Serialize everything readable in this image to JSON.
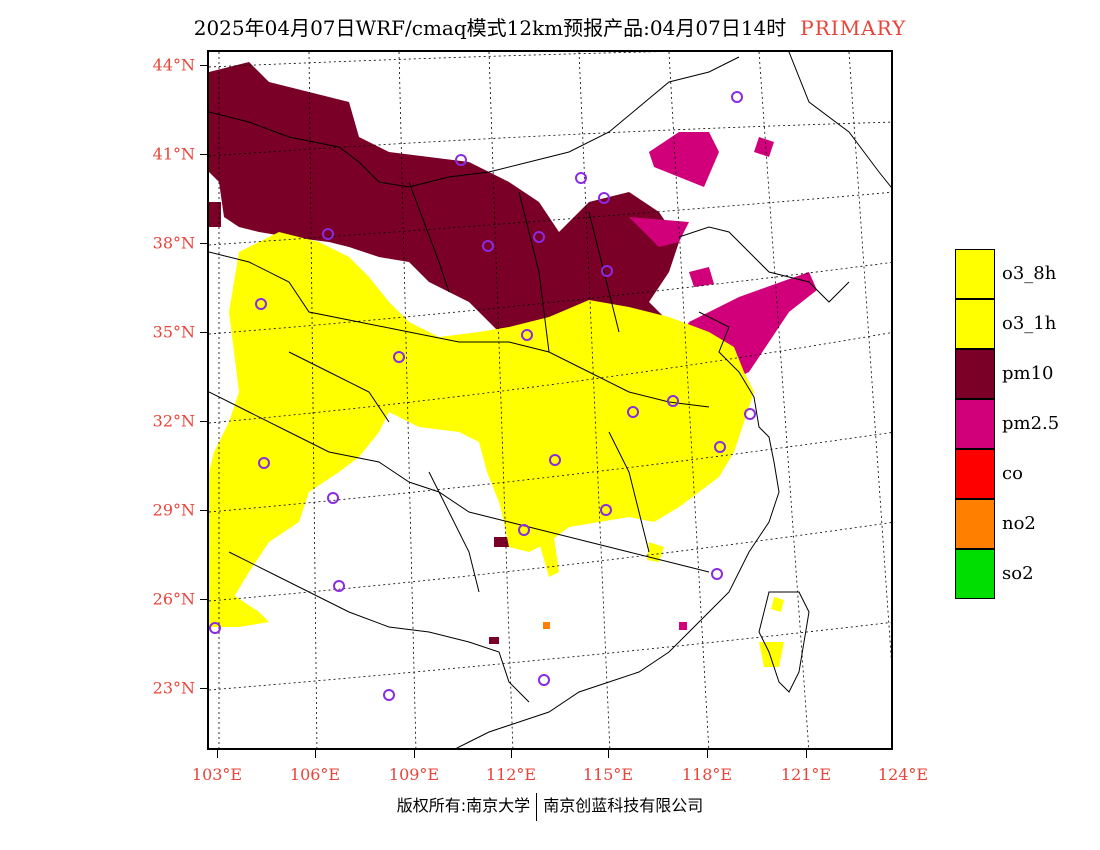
{
  "title": {
    "text": "2025年04月07日WRF/cmaq模式12km预报产品:04月07日14时",
    "tag": "PRIMARY"
  },
  "axes": {
    "lat_labels": [
      "44°N",
      "41°N",
      "38°N",
      "35°N",
      "32°N",
      "29°N",
      "26°N",
      "23°N"
    ],
    "lon_labels": [
      "103°E",
      "106°E",
      "109°E",
      "112°E",
      "115°E",
      "118°E",
      "121°E",
      "124°E"
    ]
  },
  "legend": {
    "items": [
      {
        "label": "o3_8h",
        "color": "#ffff00"
      },
      {
        "label": "o3_1h",
        "color": "#ffff00"
      },
      {
        "label": "pm10",
        "color": "#7a0028"
      },
      {
        "label": "pm2.5",
        "color": "#d1007a"
      },
      {
        "label": "co",
        "color": "#ff0000"
      },
      {
        "label": "no2",
        "color": "#ff8000"
      },
      {
        "label": "so2",
        "color": "#00dd00"
      }
    ]
  },
  "credit": {
    "left": "版权所有:南京大学",
    "right": "南京创蓝科技有限公司"
  },
  "colors": {
    "accent_text": "#e8443a",
    "station_marker": "#8a2be2"
  }
}
